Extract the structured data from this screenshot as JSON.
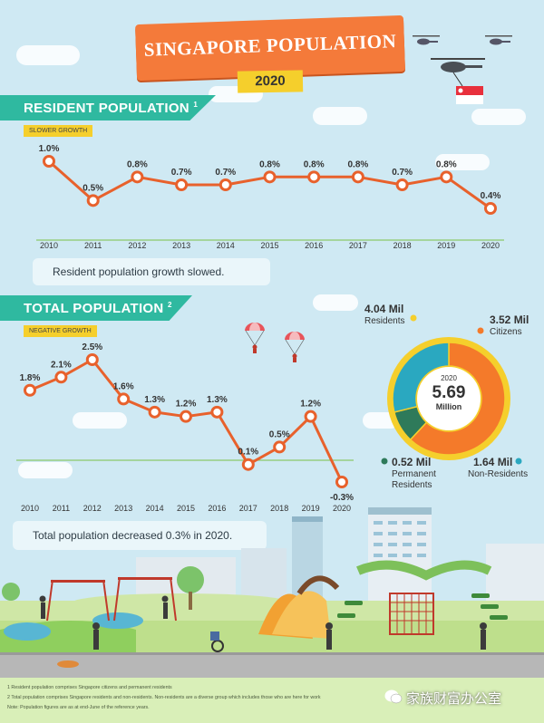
{
  "header": {
    "title": "SINGAPORE POPULATION",
    "year": "2020"
  },
  "resident": {
    "heading": "RESIDENT POPULATION",
    "footnote_mark": "1",
    "tag": "SLOWER GROWTH",
    "note": "Resident population growth slowed."
  },
  "total": {
    "heading": "TOTAL POPULATION",
    "footnote_mark": "2",
    "tag": "NEGATIVE GROWTH",
    "note": "Total population decreased 0.3% in 2020."
  },
  "donut": {
    "year": "2020",
    "total": "5.69",
    "unit": "Million",
    "residents_value": "4.04 Mil",
    "residents_label": "Residents",
    "citizens_value": "3.52 Mil",
    "citizens_label": "Citizens",
    "pr_value": "0.52 Mil",
    "pr_label1": "Permanent",
    "pr_label2": "Residents",
    "nonres_value": "1.64 Mil",
    "nonres_label": "Non-Residents",
    "colors": {
      "citizens": "#f47a2a",
      "pr": "#2e7a5a",
      "nonres": "#2aa8c0",
      "ring": "#f5cf2c"
    }
  },
  "chart_data": [
    {
      "type": "line",
      "title": "RESIDENT POPULATION",
      "x": [
        "2010",
        "2011",
        "2012",
        "2013",
        "2014",
        "2015",
        "2016",
        "2017",
        "2018",
        "2019",
        "2020"
      ],
      "values": [
        1.0,
        0.5,
        0.8,
        0.7,
        0.7,
        0.8,
        0.8,
        0.8,
        0.7,
        0.8,
        0.4
      ],
      "labels": [
        "1.0%",
        "0.5%",
        "0.8%",
        "0.7%",
        "0.7%",
        "0.8%",
        "0.8%",
        "0.8%",
        "0.7%",
        "0.8%",
        "0.4%"
      ],
      "color": "#e8612c"
    },
    {
      "type": "line",
      "title": "TOTAL POPULATION",
      "x": [
        "2010",
        "2011",
        "2012",
        "2013",
        "2014",
        "2015",
        "2016",
        "2017",
        "2018",
        "2019",
        "2020"
      ],
      "values": [
        1.8,
        2.1,
        2.5,
        1.6,
        1.3,
        1.2,
        1.3,
        0.1,
        0.5,
        1.2,
        -0.3
      ],
      "labels": [
        "1.8%",
        "2.1%",
        "2.5%",
        "1.6%",
        "1.3%",
        "1.2%",
        "1.3%",
        "0.1%",
        "0.5%",
        "1.2%",
        "-0.3%"
      ],
      "color": "#e8612c"
    },
    {
      "type": "pie",
      "title": "2020",
      "categories": [
        "Citizens",
        "Permanent Residents",
        "Non-Residents"
      ],
      "values": [
        3.52,
        0.52,
        1.64
      ],
      "total": 5.69
    }
  ],
  "footer": {
    "line1": "1 Resident population comprises Singapore citizens and permanent residents",
    "line2": "2 Total population comprises Singapore residents and non-residents. Non-residents are a diverse group which includes those who are here for work",
    "line3": "Note: Population figures are as at end-June of the reference years."
  },
  "watermark": "家族财富办公室"
}
